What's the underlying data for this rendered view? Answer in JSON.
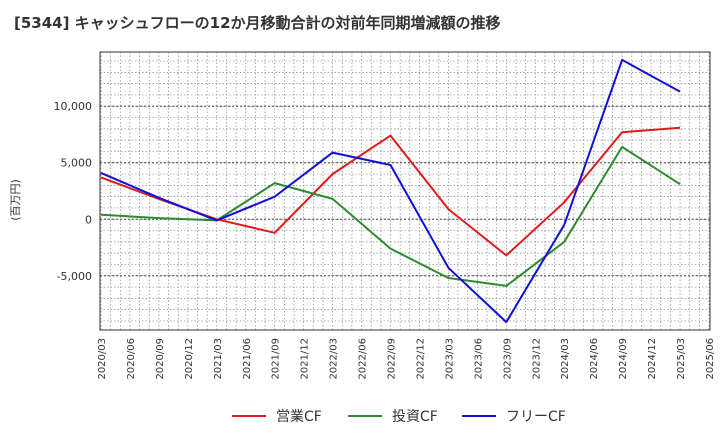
{
  "chart_data": {
    "type": "line",
    "title": "[5344]  キャッシュフローの12か月移動合計の対前年同期増減額の推移",
    "ylabel": "(百万円)",
    "xlabel": "",
    "ylim": [
      -9800,
      14800
    ],
    "y_ticks": [
      10000,
      5000,
      0,
      -5000
    ],
    "y_tick_labels": [
      "10,000",
      "5,000",
      "0",
      "-5,000"
    ],
    "categories": [
      "2020/03",
      "2020/06",
      "2020/09",
      "2020/12",
      "2021/03",
      "2021/06",
      "2021/09",
      "2021/12",
      "2022/03",
      "2022/06",
      "2022/09",
      "2022/12",
      "2023/03",
      "2023/06",
      "2023/09",
      "2023/12",
      "2024/03",
      "2024/06",
      "2024/09",
      "2024/12",
      "2025/03",
      "2025/06"
    ],
    "grid": true,
    "legend_position": "bottom",
    "series": [
      {
        "name": "営業CF",
        "color": "#e01b1b",
        "values": [
          3700,
          null,
          1800,
          null,
          0,
          null,
          -1200,
          null,
          4000,
          null,
          7400,
          null,
          900,
          null,
          -3200,
          null,
          1500,
          null,
          7700,
          null,
          8100,
          null
        ]
      },
      {
        "name": "投資CF",
        "color": "#2e8b2e",
        "values": [
          400,
          null,
          100,
          null,
          -100,
          null,
          3200,
          null,
          1800,
          null,
          -2600,
          null,
          -5200,
          null,
          -5900,
          null,
          -2000,
          null,
          6400,
          null,
          3100,
          null
        ]
      },
      {
        "name": "フリーCF",
        "color": "#1010d8",
        "values": [
          4100,
          null,
          1900,
          null,
          -100,
          null,
          2000,
          null,
          5900,
          null,
          4800,
          null,
          -4300,
          null,
          -9100,
          null,
          -500,
          null,
          14100,
          null,
          11300,
          null
        ]
      }
    ]
  }
}
